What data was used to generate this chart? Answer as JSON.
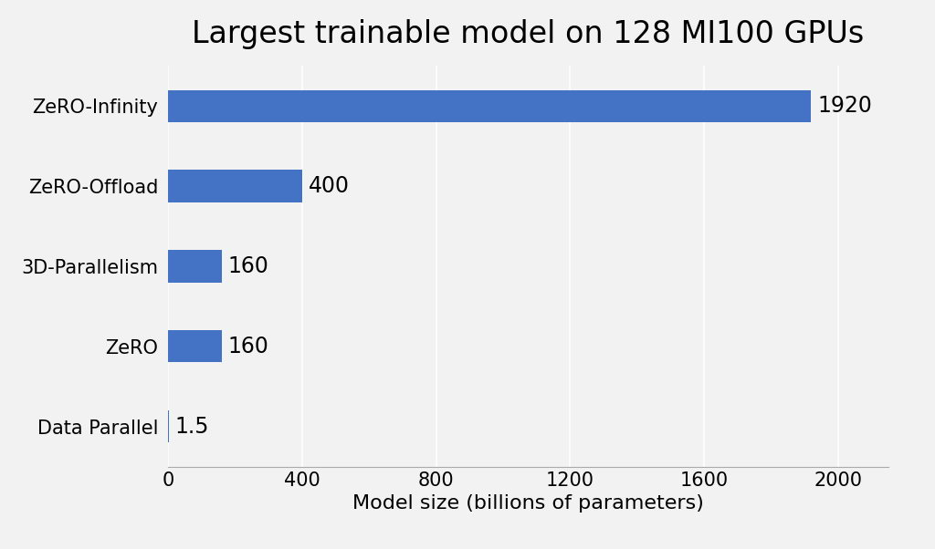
{
  "title": "Largest trainable model on 128 MI100 GPUs",
  "categories": [
    "ZeRO-Infinity",
    "ZeRO-Offload",
    "3D-Parallelism",
    "ZeRO",
    "Data Parallel"
  ],
  "values": [
    1920,
    400,
    160,
    160,
    1.5
  ],
  "labels": [
    "1920",
    "400",
    "160",
    "160",
    "1.5"
  ],
  "bar_color": "#4472C4",
  "xlabel": "Model size (billions of parameters)",
  "xlim": [
    0,
    2150
  ],
  "xticks": [
    0,
    400,
    800,
    1200,
    1600,
    2000
  ],
  "background_color": "#f2f2f2",
  "title_fontsize": 24,
  "label_fontsize": 16,
  "tick_fontsize": 15,
  "bar_label_fontsize": 17,
  "grid_color": "#ffffff",
  "bar_height": 0.4
}
